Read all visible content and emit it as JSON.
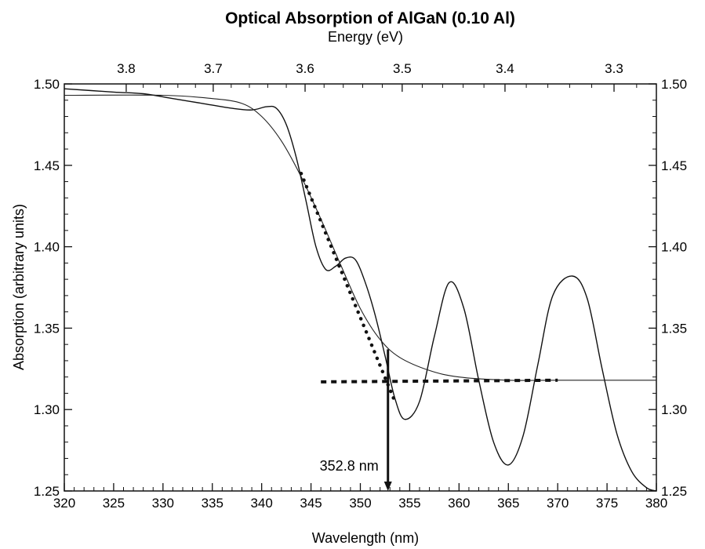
{
  "chart_data": {
    "type": "line",
    "title": "Optical Absorption of AlGaN (0.10 Al)",
    "xlabel": "Wavelength (nm)",
    "ylabel": "Absorption (arbitrary units)",
    "x2label": "Energy (eV)",
    "xlim": [
      320,
      380
    ],
    "ylim": [
      1.25,
      1.5
    ],
    "x_ticks": [
      320,
      325,
      330,
      335,
      340,
      345,
      350,
      355,
      360,
      365,
      370,
      375,
      380
    ],
    "x_tick_labels": [
      "320",
      "325",
      "330",
      "335",
      "340",
      "345",
      "350",
      "355",
      "360",
      "365",
      "370",
      "375",
      "380"
    ],
    "y_ticks": [
      1.25,
      1.3,
      1.35,
      1.4,
      1.45,
      1.5
    ],
    "y_tick_labels": [
      "1.25",
      "1.30",
      "1.35",
      "1.40",
      "1.45",
      "1.50"
    ],
    "x2_ticks": [
      3.8,
      3.7,
      3.6,
      3.5,
      3.4,
      3.3
    ],
    "x2_tick_labels": [
      "3.8",
      "3.7",
      "3.6",
      "3.5",
      "3.4",
      "3.3"
    ],
    "grid": false,
    "series": [
      {
        "style": "measured, noisy with interference fringes",
        "x": [
          320,
          325,
          328,
          331,
          334,
          337,
          339,
          340.5,
          341.5,
          342.5,
          343.5,
          344.5,
          345.5,
          346.5,
          347.5,
          348.5,
          349.5,
          350.5,
          351.5,
          352.5,
          353.5,
          354.5,
          356,
          357.5,
          359,
          360.5,
          362,
          363.5,
          365,
          366.5,
          368,
          369.5,
          371.5,
          373,
          374.5,
          376,
          377.5,
          379,
          380
        ],
        "y": [
          1.497,
          1.495,
          1.494,
          1.491,
          1.488,
          1.485,
          1.484,
          1.486,
          1.485,
          1.475,
          1.455,
          1.428,
          1.4,
          1.386,
          1.388,
          1.393,
          1.392,
          1.378,
          1.358,
          1.333,
          1.307,
          1.294,
          1.305,
          1.345,
          1.378,
          1.362,
          1.318,
          1.28,
          1.266,
          1.284,
          1.328,
          1.37,
          1.382,
          1.368,
          1.325,
          1.285,
          1.262,
          1.252,
          1.25
        ]
      },
      {
        "style": "smooth sigmoid fit",
        "x": [
          320,
          330,
          335,
          338,
          340,
          342,
          344,
          346,
          348,
          350,
          352,
          354,
          357,
          360,
          365,
          370,
          380
        ],
        "y": [
          1.493,
          1.493,
          1.491,
          1.488,
          1.48,
          1.465,
          1.443,
          1.417,
          1.389,
          1.362,
          1.343,
          1.332,
          1.324,
          1.32,
          1.318,
          1.318,
          1.318
        ]
      },
      {
        "style": "dotted tangent line (edge slope)",
        "x": [
          344,
          353.5
        ],
        "y": [
          1.445,
          1.305
        ]
      },
      {
        "style": "dotted baseline",
        "x": [
          346,
          370
        ],
        "y": [
          1.317,
          1.318
        ]
      }
    ],
    "annotations": [
      {
        "text": "352.8 nm",
        "x": 352.8,
        "y_from": 1.337,
        "y_to": 1.25
      }
    ]
  }
}
